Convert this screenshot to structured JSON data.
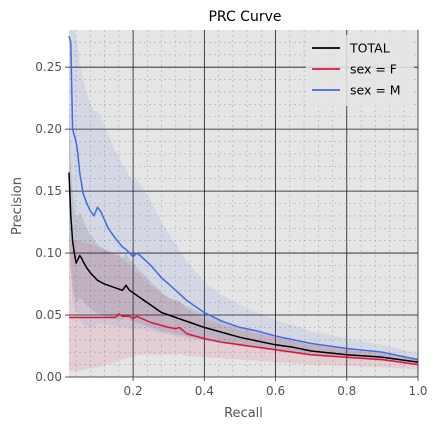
{
  "chart_data": {
    "type": "line",
    "title": "PRC Curve",
    "xlabel": "Recall",
    "ylabel": "Precision",
    "xlim": [
      0.02,
      1.0
    ],
    "ylim": [
      0.0,
      0.28
    ],
    "x_ticks": [
      0.2,
      0.4,
      0.6,
      0.8,
      1.0
    ],
    "x_tick_labels": [
      "0.2",
      "0.4",
      "0.6",
      "0.8",
      "1.0"
    ],
    "y_ticks": [
      0.0,
      0.05,
      0.1,
      0.15,
      0.2,
      0.25
    ],
    "y_tick_labels": [
      "0.00",
      "0.05",
      "0.10",
      "0.15",
      "0.20",
      "0.25"
    ],
    "grid": true,
    "minor_grid": true,
    "legend_position": "top-right",
    "series": [
      {
        "name": "TOTAL",
        "color": "#000000",
        "band": true,
        "x": [
          0.02,
          0.025,
          0.03,
          0.035,
          0.04,
          0.045,
          0.05,
          0.055,
          0.06,
          0.07,
          0.08,
          0.1,
          0.12,
          0.15,
          0.17,
          0.18,
          0.19,
          0.2,
          0.22,
          0.25,
          0.28,
          0.3,
          0.33,
          0.36,
          0.4,
          0.45,
          0.5,
          0.55,
          0.6,
          0.65,
          0.7,
          0.8,
          0.9,
          1.0
        ],
        "y": [
          0.165,
          0.13,
          0.11,
          0.1,
          0.092,
          0.095,
          0.098,
          0.096,
          0.093,
          0.088,
          0.084,
          0.078,
          0.075,
          0.072,
          0.07,
          0.074,
          0.07,
          0.068,
          0.064,
          0.058,
          0.052,
          0.05,
          0.047,
          0.044,
          0.04,
          0.036,
          0.032,
          0.029,
          0.026,
          0.024,
          0.021,
          0.018,
          0.016,
          0.012
        ],
        "lower": [
          0.11,
          0.085,
          0.072,
          0.066,
          0.06,
          0.062,
          0.064,
          0.063,
          0.061,
          0.058,
          0.055,
          0.051,
          0.049,
          0.047,
          0.046,
          0.048,
          0.046,
          0.045,
          0.043,
          0.04,
          0.037,
          0.036,
          0.034,
          0.032,
          0.03,
          0.028,
          0.025,
          0.023,
          0.021,
          0.019,
          0.017,
          0.015,
          0.013,
          0.01
        ],
        "upper": [
          0.22,
          0.175,
          0.15,
          0.138,
          0.128,
          0.13,
          0.133,
          0.131,
          0.127,
          0.12,
          0.115,
          0.107,
          0.103,
          0.099,
          0.096,
          0.1,
          0.095,
          0.092,
          0.086,
          0.077,
          0.068,
          0.064,
          0.06,
          0.056,
          0.051,
          0.045,
          0.04,
          0.036,
          0.032,
          0.029,
          0.026,
          0.022,
          0.019,
          0.015
        ]
      },
      {
        "name": "sex = F",
        "color": "#dc143c",
        "band": true,
        "x": [
          0.02,
          0.05,
          0.1,
          0.15,
          0.16,
          0.17,
          0.19,
          0.2,
          0.21,
          0.25,
          0.3,
          0.32,
          0.33,
          0.35,
          0.4,
          0.45,
          0.5,
          0.55,
          0.6,
          0.7,
          0.8,
          0.9,
          1.0
        ],
        "y": [
          0.048,
          0.048,
          0.048,
          0.048,
          0.051,
          0.049,
          0.049,
          0.047,
          0.049,
          0.044,
          0.04,
          0.039,
          0.04,
          0.035,
          0.031,
          0.028,
          0.026,
          0.024,
          0.022,
          0.018,
          0.016,
          0.014,
          0.01
        ],
        "lower": [
          0.005,
          0.005,
          0.008,
          0.012,
          0.014,
          0.014,
          0.016,
          0.016,
          0.018,
          0.018,
          0.018,
          0.018,
          0.019,
          0.017,
          0.016,
          0.015,
          0.014,
          0.013,
          0.012,
          0.01,
          0.009,
          0.008,
          0.006
        ],
        "upper": [
          0.11,
          0.11,
          0.105,
          0.1,
          0.1,
          0.095,
          0.09,
          0.085,
          0.085,
          0.074,
          0.064,
          0.062,
          0.062,
          0.055,
          0.047,
          0.042,
          0.038,
          0.035,
          0.032,
          0.026,
          0.023,
          0.02,
          0.015
        ]
      },
      {
        "name": "sex = M",
        "color": "#4169e1",
        "band": true,
        "x": [
          0.02,
          0.025,
          0.03,
          0.035,
          0.04,
          0.045,
          0.05,
          0.06,
          0.07,
          0.08,
          0.09,
          0.1,
          0.11,
          0.13,
          0.15,
          0.17,
          0.18,
          0.19,
          0.2,
          0.21,
          0.22,
          0.25,
          0.28,
          0.3,
          0.35,
          0.4,
          0.45,
          0.5,
          0.55,
          0.6,
          0.7,
          0.8,
          0.9,
          1.0
        ],
        "y": [
          0.275,
          0.27,
          0.2,
          0.195,
          0.19,
          0.18,
          0.165,
          0.148,
          0.14,
          0.134,
          0.13,
          0.137,
          0.133,
          0.12,
          0.112,
          0.105,
          0.103,
          0.1,
          0.097,
          0.1,
          0.098,
          0.09,
          0.08,
          0.075,
          0.062,
          0.052,
          0.045,
          0.04,
          0.037,
          0.033,
          0.027,
          0.023,
          0.02,
          0.014
        ],
        "lower": [
          0.11,
          0.1,
          0.06,
          0.055,
          0.052,
          0.05,
          0.046,
          0.042,
          0.04,
          0.04,
          0.04,
          0.043,
          0.043,
          0.042,
          0.041,
          0.04,
          0.04,
          0.039,
          0.038,
          0.039,
          0.039,
          0.037,
          0.035,
          0.034,
          0.031,
          0.029,
          0.027,
          0.025,
          0.024,
          0.022,
          0.019,
          0.017,
          0.015,
          0.011
        ],
        "upper": [
          0.28,
          0.28,
          0.28,
          0.28,
          0.275,
          0.265,
          0.255,
          0.24,
          0.23,
          0.22,
          0.215,
          0.215,
          0.21,
          0.195,
          0.183,
          0.172,
          0.168,
          0.162,
          0.158,
          0.16,
          0.156,
          0.142,
          0.125,
          0.116,
          0.094,
          0.077,
          0.066,
          0.058,
          0.052,
          0.046,
          0.037,
          0.031,
          0.026,
          0.019
        ]
      }
    ]
  }
}
